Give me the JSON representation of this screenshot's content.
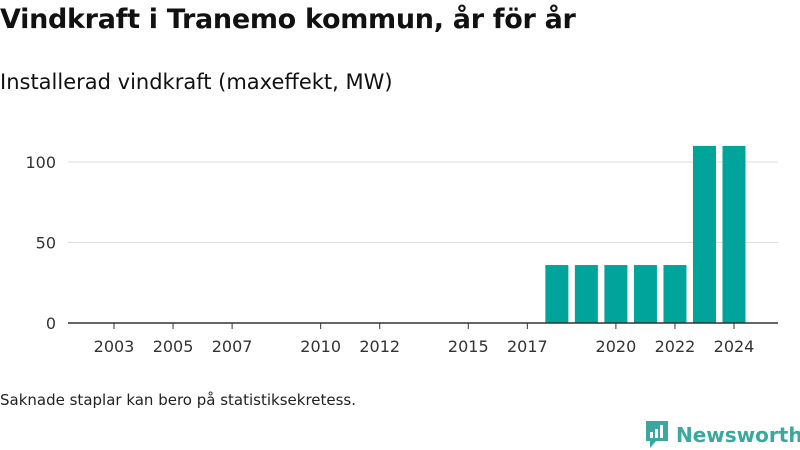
{
  "title": "Vindkraft i Tranemo kommun, år för år",
  "subtitle": "Installerad vindkraft (maxeffekt, MW)",
  "note": "Saknade staplar kan bero på statistiksekretess.",
  "brand": {
    "name": "Newsworthy",
    "color": "#3aa89e",
    "icon": "bar-chart-logo-icon"
  },
  "colors": {
    "bar": "#00a49a",
    "grid": "#dddddd",
    "axis": "#333333"
  },
  "chart_data": {
    "type": "bar",
    "title": "Vindkraft i Tranemo kommun, år för år",
    "subtitle": "Installerad vindkraft (maxeffekt, MW)",
    "xlabel": "",
    "ylabel": "",
    "x_range": [
      2001,
      2025
    ],
    "ylim": [
      0,
      120
    ],
    "yticks": [
      0,
      50,
      100
    ],
    "xticks": [
      2003,
      2005,
      2007,
      2010,
      2012,
      2015,
      2017,
      2020,
      2022,
      2024
    ],
    "grid": true,
    "x": [
      2018,
      2019,
      2020,
      2021,
      2022,
      2023,
      2024
    ],
    "values": [
      36,
      36,
      36,
      36,
      36,
      110,
      110
    ]
  }
}
